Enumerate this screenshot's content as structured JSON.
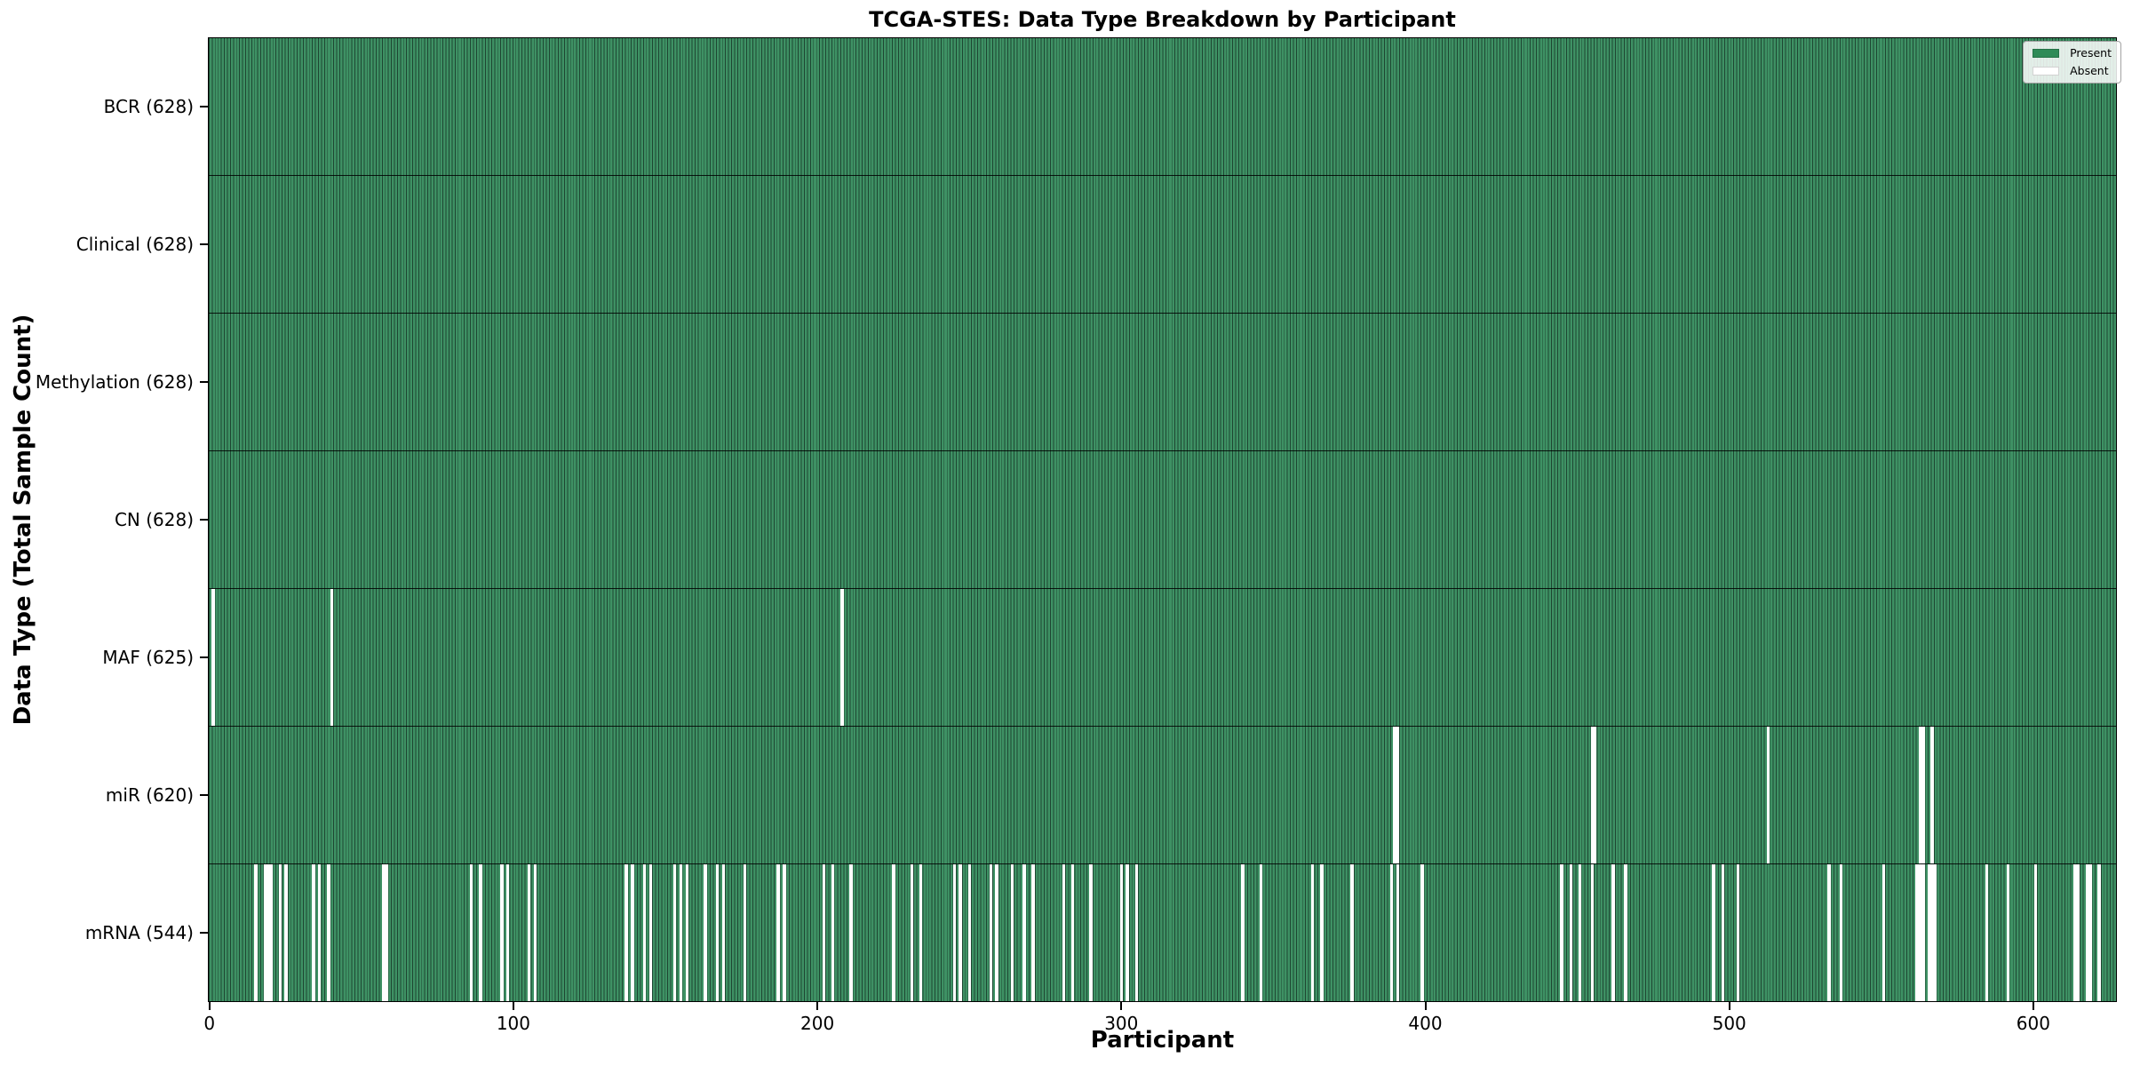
{
  "chart_data": {
    "type": "heatmap",
    "title": "TCGA-STES: Data Type Breakdown by Participant",
    "xlabel": "Participant",
    "ylabel": "Data Type (Total Sample Count)",
    "n_participants": 628,
    "x_range": [
      0,
      628
    ],
    "x_ticks": [
      0,
      100,
      200,
      300,
      400,
      500,
      600
    ],
    "grid": false,
    "legend": {
      "position": "upper-right",
      "entries": [
        {
          "label": "Present",
          "color": "#2e8b57"
        },
        {
          "label": "Absent",
          "color": "#ffffff"
        }
      ]
    },
    "colors": {
      "present_fill": "#3e9164",
      "bar_edge": "#1e4632",
      "absent": "#ffffff",
      "row_separator": "#000000"
    },
    "rows": [
      {
        "id": "bcr",
        "data_type": "BCR",
        "label": "BCR (628)",
        "present_count": 628,
        "absent_participants": []
      },
      {
        "id": "clinical",
        "data_type": "Clinical",
        "label": "Clinical (628)",
        "present_count": 628,
        "absent_participants": []
      },
      {
        "id": "methylation",
        "data_type": "Methylation",
        "label": "Methylation (628)",
        "present_count": 628,
        "absent_participants": []
      },
      {
        "id": "cn",
        "data_type": "CN",
        "label": "CN (628)",
        "present_count": 628,
        "absent_participants": []
      },
      {
        "id": "maf",
        "data_type": "MAF",
        "label": "MAF (625)",
        "present_count": 625,
        "absent_participants": [
          1,
          40,
          208
        ]
      },
      {
        "id": "mir",
        "data_type": "miR",
        "label": "miR (620)",
        "present_count": 620,
        "absent_participants": [
          390,
          391,
          455,
          456,
          513,
          563,
          564,
          567
        ]
      },
      {
        "id": "mrna",
        "data_type": "mRNA",
        "label": "mRNA (544)",
        "present_count": 544,
        "absent_participants": [
          15,
          18,
          19,
          20,
          23,
          25,
          34,
          36,
          39,
          57,
          58,
          86,
          89,
          96,
          98,
          105,
          107,
          137,
          139,
          143,
          145,
          153,
          155,
          157,
          163,
          167,
          169,
          176,
          187,
          189,
          202,
          205,
          211,
          225,
          231,
          234,
          245,
          247,
          250,
          257,
          259,
          264,
          268,
          271,
          281,
          284,
          290,
          300,
          302,
          305,
          340,
          346,
          363,
          366,
          376,
          389,
          391,
          399,
          445,
          448,
          451,
          455,
          462,
          466,
          495,
          498,
          503,
          533,
          537,
          551,
          562,
          563,
          564,
          566,
          567,
          568,
          585,
          592,
          601,
          614,
          615,
          618,
          619,
          622
        ]
      }
    ]
  }
}
